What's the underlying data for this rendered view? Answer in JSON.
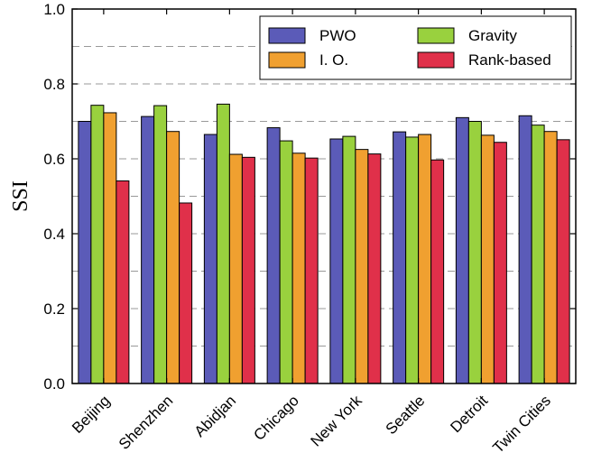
{
  "chart_data": {
    "type": "bar",
    "title": "",
    "xlabel": "",
    "ylabel": "SSI",
    "ylim": [
      0,
      1.0
    ],
    "yticks": [
      "0.0",
      "0.2",
      "0.4",
      "0.6",
      "0.8",
      "1.0"
    ],
    "grid": "horizontal dashed, at 0.1 and 0.3-style minor steps",
    "legend_position": "top-right",
    "categories": [
      "Beijing",
      "Shenzhen",
      "Abidjan",
      "Chicago",
      "New York",
      "Seattle",
      "Detroit",
      "Twin Cities"
    ],
    "series": [
      {
        "name": "PWO",
        "color": "#5b5bb8",
        "values": [
          0.7,
          0.713,
          0.665,
          0.683,
          0.653,
          0.672,
          0.71,
          0.715
        ]
      },
      {
        "name": "Gravity",
        "color": "#99d13e",
        "values": [
          0.743,
          0.742,
          0.746,
          0.648,
          0.66,
          0.658,
          0.7,
          0.69
        ]
      },
      {
        "name": "I. O.",
        "color": "#f0a030",
        "values": [
          0.723,
          0.673,
          0.612,
          0.615,
          0.625,
          0.665,
          0.663,
          0.673
        ]
      },
      {
        "name": "Rank-based",
        "color": "#e0304a",
        "values": [
          0.541,
          0.482,
          0.604,
          0.602,
          0.613,
          0.597,
          0.644,
          0.651
        ]
      }
    ]
  }
}
